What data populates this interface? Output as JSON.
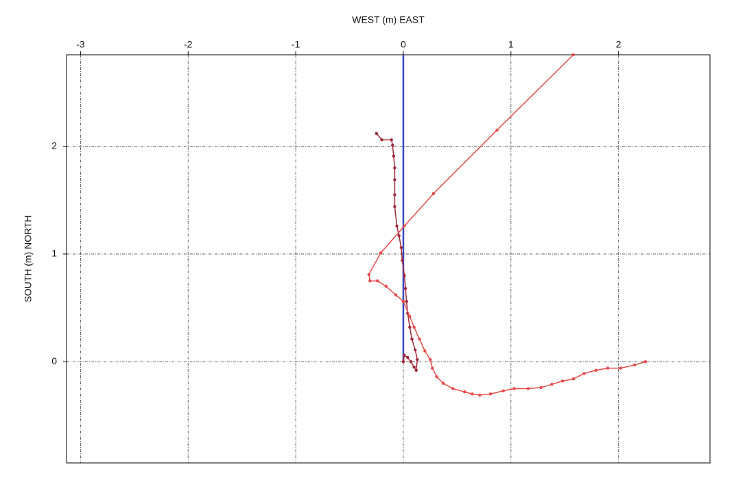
{
  "chart_data": {
    "type": "line",
    "xlabel": "WEST  (m)  EAST",
    "ylabel": "SOUTH  (m)  NORTH",
    "xlim": [
      -3.13,
      2.85
    ],
    "ylim": [
      -0.94,
      2.85
    ],
    "xticks": [
      -3,
      -2,
      -1,
      0,
      1,
      2
    ],
    "yticks": [
      0,
      1,
      2
    ],
    "grid": true,
    "series": [
      {
        "color": "#3848c0",
        "markers": false,
        "x": [
          0,
          0
        ],
        "values": [
          0,
          2.85
        ]
      },
      {
        "color": "#a02838",
        "markers": true,
        "x": [
          -0.25,
          -0.2,
          -0.11,
          -0.1,
          -0.09,
          -0.08,
          -0.08,
          -0.08,
          -0.08,
          -0.06,
          -0.04,
          -0.02,
          -0.01,
          0.01,
          0.02,
          0.03,
          0.04,
          0.06,
          0.08,
          0.11,
          0.13,
          0.12,
          0.1,
          0.07,
          0.04,
          0.01,
          0
        ],
        "values": [
          2.12,
          2.06,
          2.06,
          2.01,
          1.91,
          1.8,
          1.69,
          1.55,
          1.44,
          1.26,
          1.17,
          1.06,
          0.94,
          0.8,
          0.68,
          0.56,
          0.45,
          0.32,
          0.21,
          0.11,
          0.02,
          -0.08,
          -0.05,
          0.0,
          0.04,
          0.06,
          0
        ]
      },
      {
        "color": "#e84848",
        "markers": true,
        "x": [
          2.25,
          2.15,
          2.02,
          1.9,
          1.79,
          1.68,
          1.58,
          1.48,
          1.38,
          1.28,
          1.16,
          1.03,
          0.93,
          0.81,
          0.71,
          0.64,
          0.57,
          0.46,
          0.37,
          0.31,
          0.27,
          0.25,
          0.2,
          0.15,
          0.1,
          0.06,
          0.0,
          -0.07,
          -0.16,
          -0.24,
          -0.31,
          -0.32,
          -0.21,
          0.01,
          0.28,
          0.87,
          1.58
        ],
        "values": [
          0,
          -0.03,
          -0.06,
          -0.06,
          -0.08,
          -0.11,
          -0.16,
          -0.18,
          -0.21,
          -0.24,
          -0.25,
          -0.25,
          -0.27,
          -0.3,
          -0.31,
          -0.3,
          -0.28,
          -0.25,
          -0.2,
          -0.14,
          -0.06,
          0.02,
          0.1,
          0.21,
          0.32,
          0.42,
          0.56,
          0.62,
          0.7,
          0.75,
          0.75,
          0.81,
          1.01,
          1.26,
          1.56,
          2.15,
          2.85
        ]
      }
    ]
  }
}
